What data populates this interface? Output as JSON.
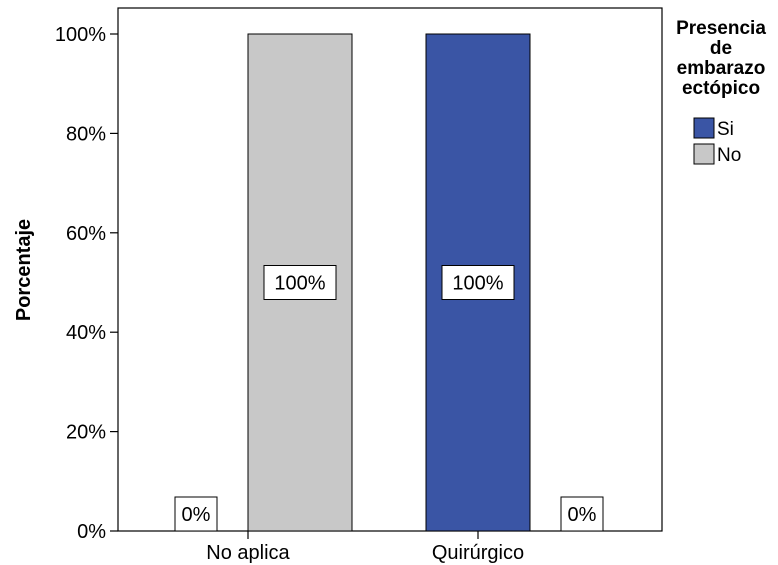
{
  "chart_data": {
    "type": "bar",
    "ylabel": "Porcentaje",
    "xlabel": "",
    "categories": [
      "No aplica",
      "Quirúrgico"
    ],
    "ylim": [
      0,
      100
    ],
    "yticks": [
      0,
      20,
      40,
      60,
      80,
      100
    ],
    "ytick_labels": [
      "0%",
      "20%",
      "40%",
      "60%",
      "80%",
      "100%"
    ],
    "grid": false,
    "legend": {
      "title": "Presencia de embarazo ectópico",
      "title_lines": [
        "Presencia",
        "de",
        "embarazo",
        "ectópico"
      ],
      "placement": "right"
    },
    "series": [
      {
        "name": "Si",
        "color": "#3a55a5",
        "values": [
          0,
          100
        ],
        "labels": [
          "0%",
          "100%"
        ]
      },
      {
        "name": "No",
        "color": "#c8c8c8",
        "values": [
          100,
          0
        ],
        "labels": [
          "100%",
          "0%"
        ]
      }
    ]
  }
}
